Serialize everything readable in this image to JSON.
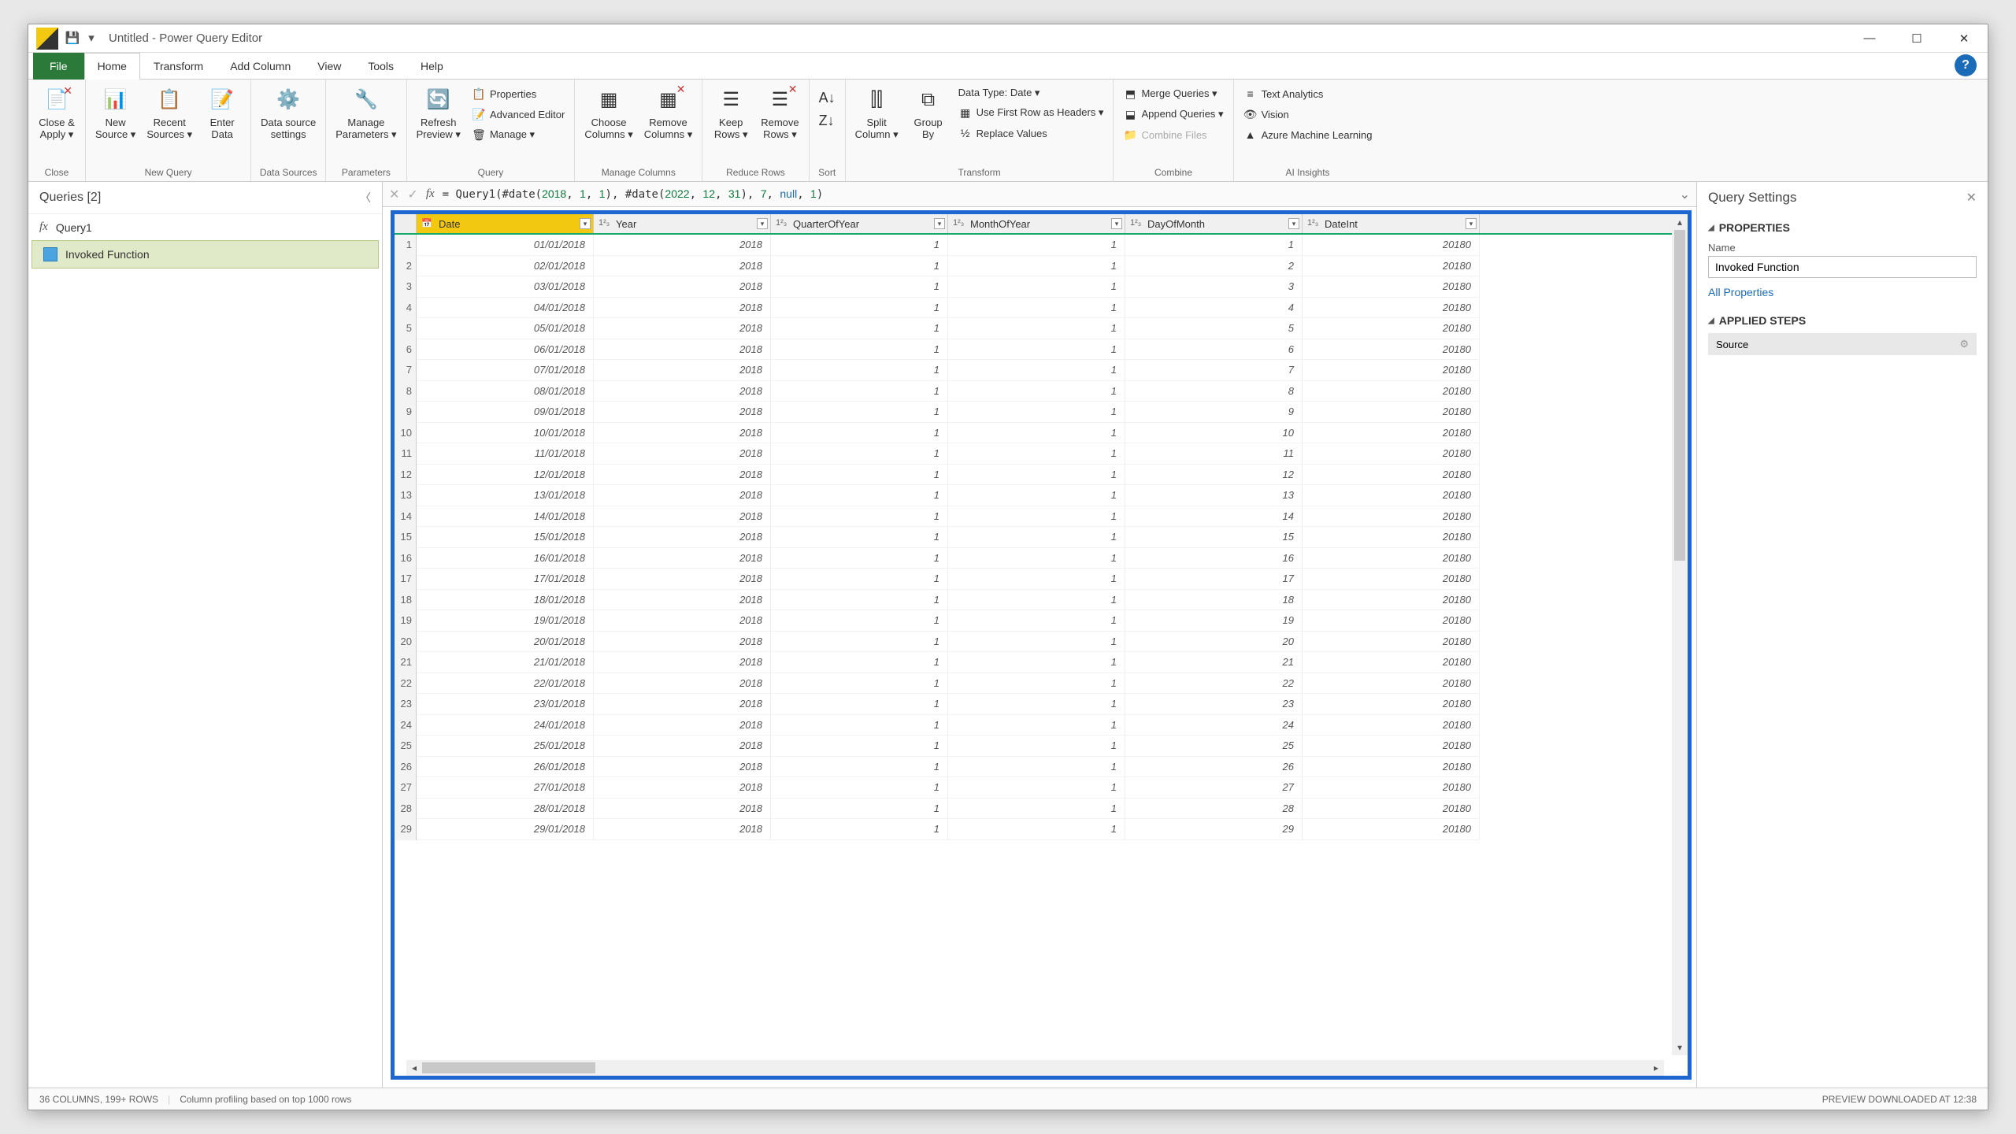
{
  "window": {
    "title": "Untitled - Power Query Editor"
  },
  "tabs": [
    "File",
    "Home",
    "Transform",
    "Add Column",
    "View",
    "Tools",
    "Help"
  ],
  "active_tab": "Home",
  "ribbon": {
    "close": {
      "label": "Close &\nApply ▾",
      "group": "Close"
    },
    "newquery": {
      "items": [
        "New\nSource ▾",
        "Recent\nSources ▾",
        "Enter\nData"
      ],
      "group": "New Query"
    },
    "datasources": {
      "item": "Data source\nsettings",
      "group": "Data Sources"
    },
    "parameters": {
      "item": "Manage\nParameters ▾",
      "group": "Parameters"
    },
    "query": {
      "main": "Refresh\nPreview ▾",
      "sub": [
        "Properties",
        "Advanced Editor",
        "Manage ▾"
      ],
      "group": "Query"
    },
    "managecols": {
      "items": [
        "Choose\nColumns ▾",
        "Remove\nColumns ▾"
      ],
      "group": "Manage Columns"
    },
    "reducerows": {
      "items": [
        "Keep\nRows ▾",
        "Remove\nRows ▾"
      ],
      "group": "Reduce Rows"
    },
    "sort": {
      "group": "Sort"
    },
    "transform": {
      "main": [
        "Split\nColumn ▾",
        "Group\nBy"
      ],
      "sub": [
        "Data Type: Date ▾",
        "Use First Row as Headers ▾",
        "Replace Values"
      ],
      "group": "Transform"
    },
    "combine": {
      "sub": [
        "Merge Queries ▾",
        "Append Queries ▾",
        "Combine Files"
      ],
      "group": "Combine"
    },
    "ai": {
      "sub": [
        "Text Analytics",
        "Vision",
        "Azure Machine Learning"
      ],
      "group": "AI Insights"
    }
  },
  "queries": {
    "title": "Queries [2]",
    "items": [
      "Query1",
      "Invoked Function"
    ],
    "selected": 1
  },
  "formula": "= Query1(#date(2018, 1, 1), #date(2022, 12, 31), 7, null, 1)",
  "columns": [
    "Date",
    "Year",
    "QuarterOfYear",
    "MonthOfYear",
    "DayOfMonth",
    "DateInt"
  ],
  "rows": [
    [
      "01/01/2018",
      "2018",
      "1",
      "1",
      "1",
      "20180"
    ],
    [
      "02/01/2018",
      "2018",
      "1",
      "1",
      "2",
      "20180"
    ],
    [
      "03/01/2018",
      "2018",
      "1",
      "1",
      "3",
      "20180"
    ],
    [
      "04/01/2018",
      "2018",
      "1",
      "1",
      "4",
      "20180"
    ],
    [
      "05/01/2018",
      "2018",
      "1",
      "1",
      "5",
      "20180"
    ],
    [
      "06/01/2018",
      "2018",
      "1",
      "1",
      "6",
      "20180"
    ],
    [
      "07/01/2018",
      "2018",
      "1",
      "1",
      "7",
      "20180"
    ],
    [
      "08/01/2018",
      "2018",
      "1",
      "1",
      "8",
      "20180"
    ],
    [
      "09/01/2018",
      "2018",
      "1",
      "1",
      "9",
      "20180"
    ],
    [
      "10/01/2018",
      "2018",
      "1",
      "1",
      "10",
      "20180"
    ],
    [
      "11/01/2018",
      "2018",
      "1",
      "1",
      "11",
      "20180"
    ],
    [
      "12/01/2018",
      "2018",
      "1",
      "1",
      "12",
      "20180"
    ],
    [
      "13/01/2018",
      "2018",
      "1",
      "1",
      "13",
      "20180"
    ],
    [
      "14/01/2018",
      "2018",
      "1",
      "1",
      "14",
      "20180"
    ],
    [
      "15/01/2018",
      "2018",
      "1",
      "1",
      "15",
      "20180"
    ],
    [
      "16/01/2018",
      "2018",
      "1",
      "1",
      "16",
      "20180"
    ],
    [
      "17/01/2018",
      "2018",
      "1",
      "1",
      "17",
      "20180"
    ],
    [
      "18/01/2018",
      "2018",
      "1",
      "1",
      "18",
      "20180"
    ],
    [
      "19/01/2018",
      "2018",
      "1",
      "1",
      "19",
      "20180"
    ],
    [
      "20/01/2018",
      "2018",
      "1",
      "1",
      "20",
      "20180"
    ],
    [
      "21/01/2018",
      "2018",
      "1",
      "1",
      "21",
      "20180"
    ],
    [
      "22/01/2018",
      "2018",
      "1",
      "1",
      "22",
      "20180"
    ],
    [
      "23/01/2018",
      "2018",
      "1",
      "1",
      "23",
      "20180"
    ],
    [
      "24/01/2018",
      "2018",
      "1",
      "1",
      "24",
      "20180"
    ],
    [
      "25/01/2018",
      "2018",
      "1",
      "1",
      "25",
      "20180"
    ],
    [
      "26/01/2018",
      "2018",
      "1",
      "1",
      "26",
      "20180"
    ],
    [
      "27/01/2018",
      "2018",
      "1",
      "1",
      "27",
      "20180"
    ],
    [
      "28/01/2018",
      "2018",
      "1",
      "1",
      "28",
      "20180"
    ],
    [
      "29/01/2018",
      "2018",
      "1",
      "1",
      "29",
      "20180"
    ]
  ],
  "settings": {
    "title": "Query Settings",
    "properties": "PROPERTIES",
    "name_label": "Name",
    "name_value": "Invoked Function",
    "all_props": "All Properties",
    "applied_steps": "APPLIED STEPS",
    "step": "Source"
  },
  "status": {
    "left": "36 COLUMNS, 199+ ROWS",
    "mid": "Column profiling based on top 1000 rows",
    "right": "PREVIEW DOWNLOADED AT 12:38"
  }
}
